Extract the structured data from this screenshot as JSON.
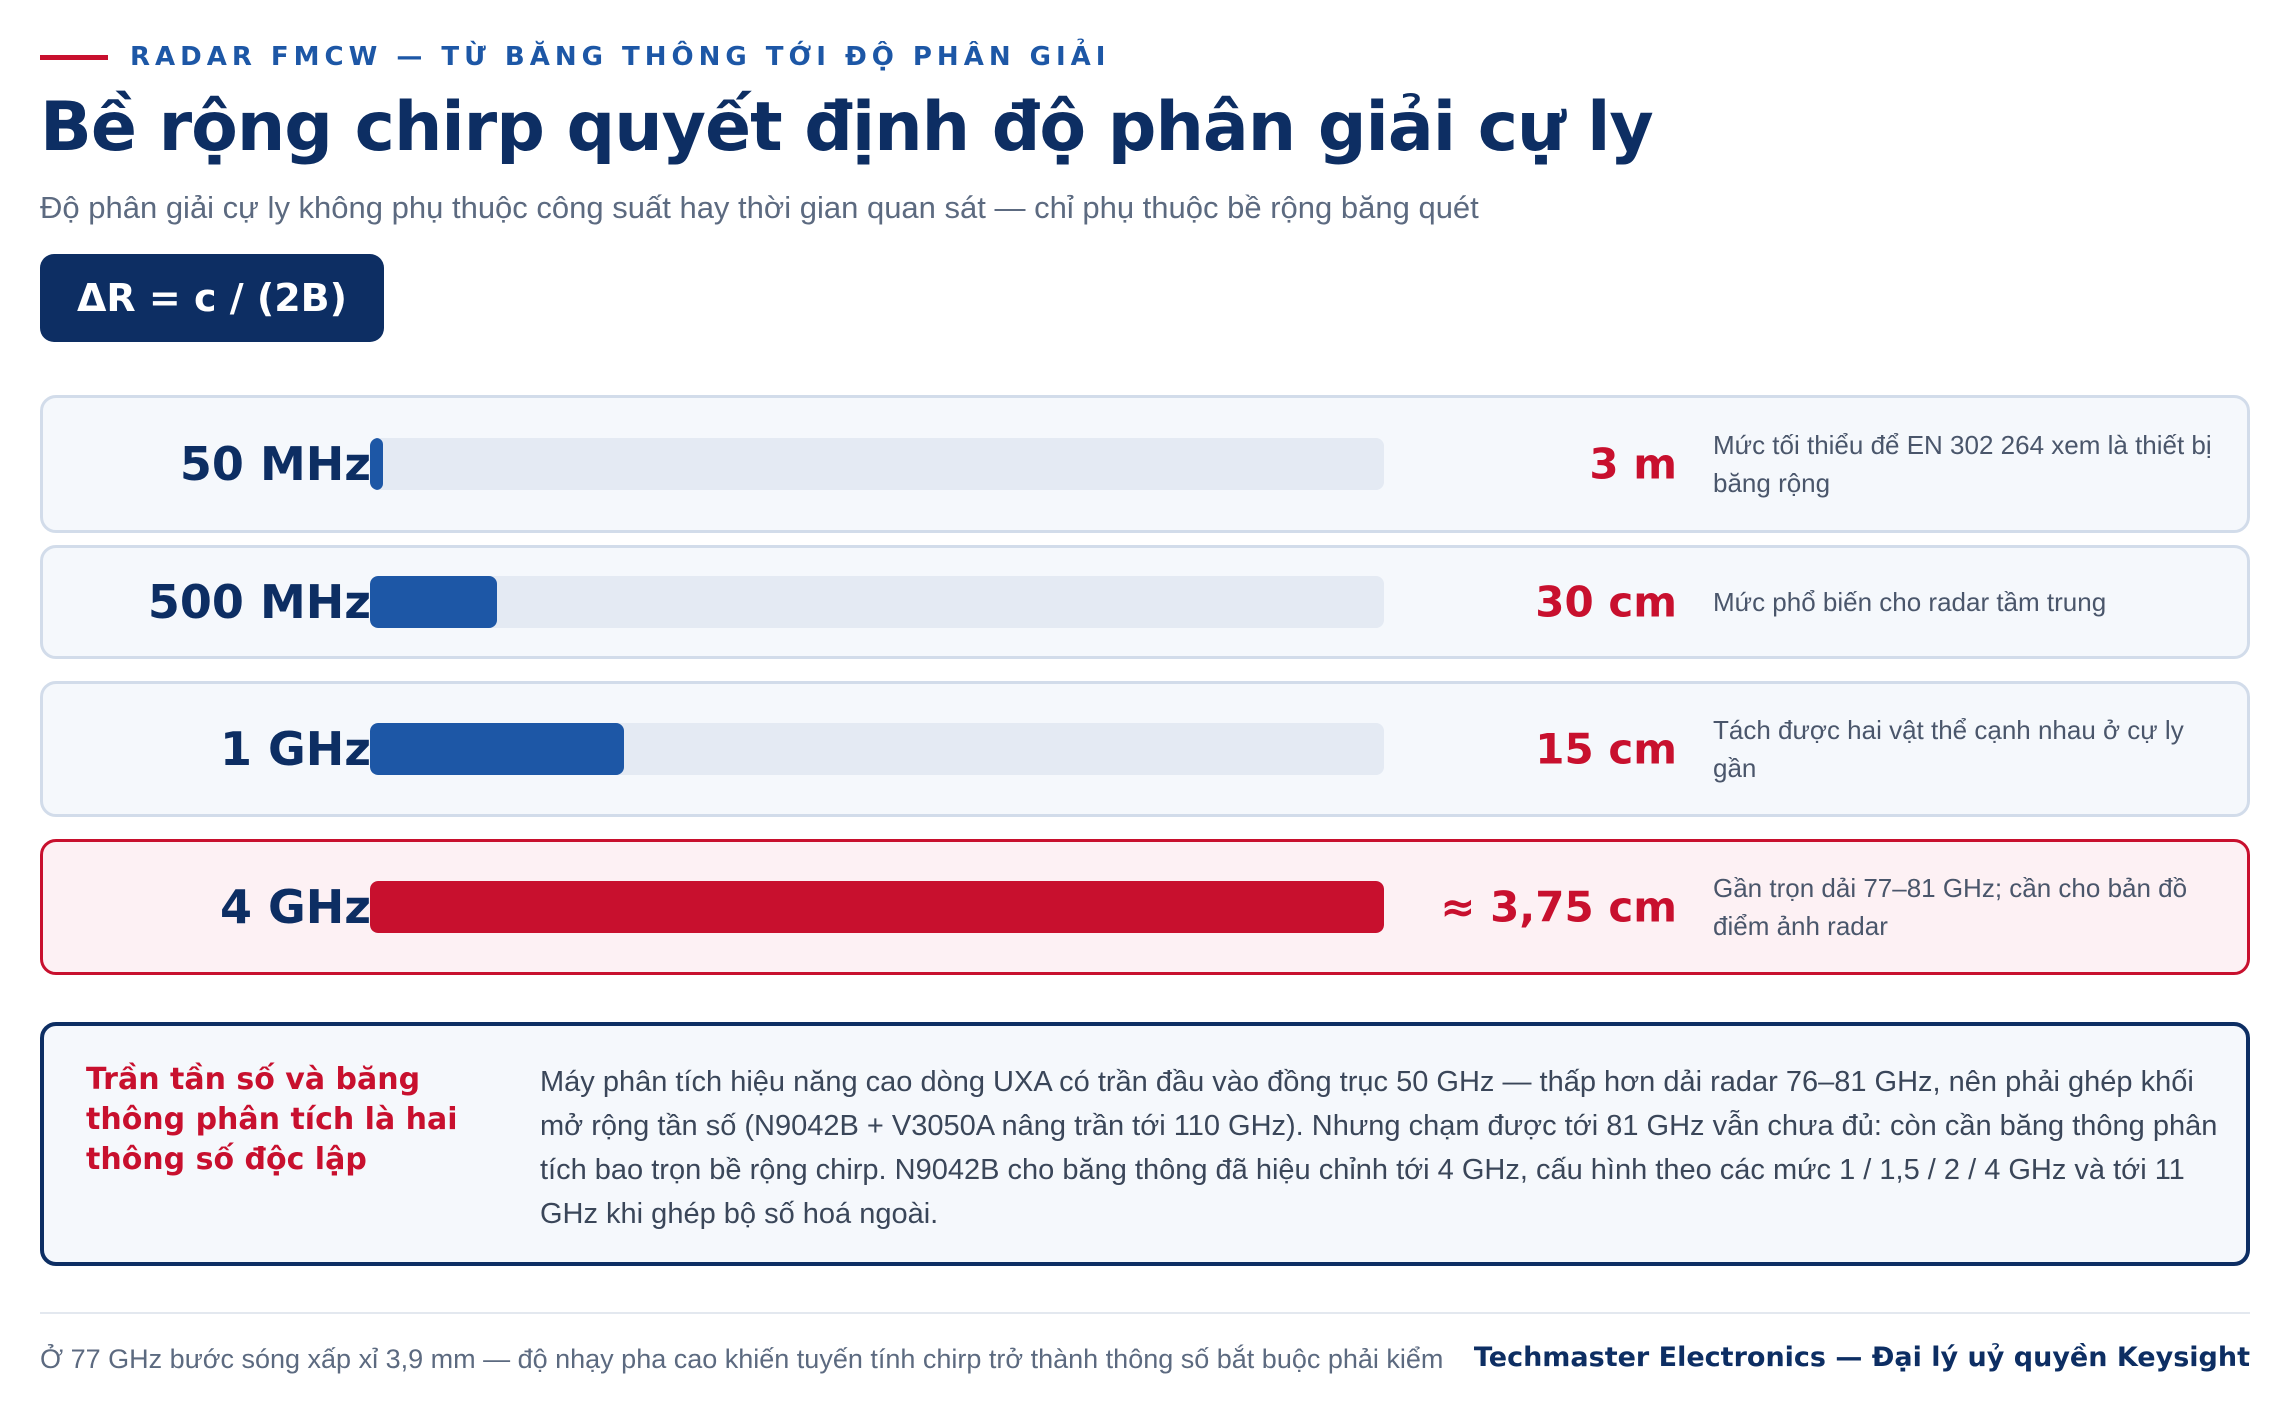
{
  "header": {
    "kicker": "RADAR FMCW — TỪ BĂNG THÔNG TỚI ĐỘ PHÂN GIẢI",
    "title": "Bề rộng chirp quyết định độ phân giải cự ly",
    "subtitle": "Độ phân giải cự ly không phụ thuộc công suất hay thời gian quan sát — chỉ phụ thuộc bề rộng băng quét",
    "formula": "ΔR = c / (2B)"
  },
  "rows": [
    {
      "bandwidth": "50 MHz",
      "resolution": "3 m",
      "note": "Mức tối thiểu để EN 302 264 xem là thiết bị băng rộng",
      "fill_fraction": 0.0125
    },
    {
      "bandwidth": "500 MHz",
      "resolution": "30 cm",
      "note": "Mức phổ biến cho radar tầm trung",
      "fill_fraction": 0.125
    },
    {
      "bandwidth": "1 GHz",
      "resolution": "15 cm",
      "note": "Tách được hai vật thể cạnh nhau ở cự ly gần",
      "fill_fraction": 0.25
    },
    {
      "bandwidth": "4 GHz",
      "resolution": "≈ 3,75 cm",
      "note": "Gần trọn dải 77–81 GHz; cần cho bản đồ điểm ảnh radar",
      "fill_fraction": 1.0
    }
  ],
  "callout": {
    "title": "Trần tần số và băng thông phân tích là hai thông số độc lập",
    "body": "Máy phân tích hiệu năng cao dòng UXA có trần đầu vào đồng trục 50 GHz — thấp hơn dải radar 76–81 GHz, nên phải ghép khối mở rộng tần số (N9042B + V3050A nâng trần tới 110 GHz). Nhưng chạm được tới 81 GHz vẫn chưa đủ: còn cần băng thông phân tích bao trọn bề rộng chirp. N9042B cho băng thông đã hiệu chỉnh tới 4 GHz, cấu hình theo các mức 1 / 1,5 / 2 / 4 GHz và tới 11 GHz khi ghép bộ số hoá ngoài."
  },
  "footer": {
    "note": "Ở 77 GHz bước sóng xấp xỉ 3,9 mm — độ nhạy pha cao khiến tuyến tính chirp trở thành thông số bắt buộc phải kiểm",
    "brand": "Techmaster Electronics — Đại lý uỷ quyền Keysight"
  },
  "colors": {
    "navy": "#0d2e63",
    "blue": "#1d57a6",
    "red": "#c8102e",
    "track": "#e4eaf3"
  }
}
